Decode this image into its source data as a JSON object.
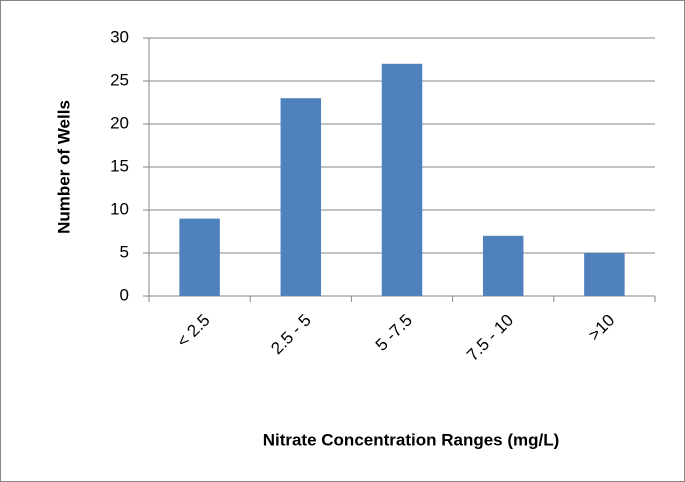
{
  "chart_data": {
    "type": "bar",
    "x_label": "Nitrate Concentration Ranges (mg/L)",
    "y_label": "Number of Wells",
    "categories": [
      "< 2.5",
      "2.5 - 5",
      "5 -7.5",
      "7.5 - 10",
      ">10"
    ],
    "values": [
      9,
      23,
      27,
      7,
      5
    ],
    "color": "#4f81bd",
    "ylim": [
      0,
      30
    ],
    "yticks": [
      0,
      5,
      10,
      15,
      20,
      25,
      30
    ],
    "grid": true
  }
}
